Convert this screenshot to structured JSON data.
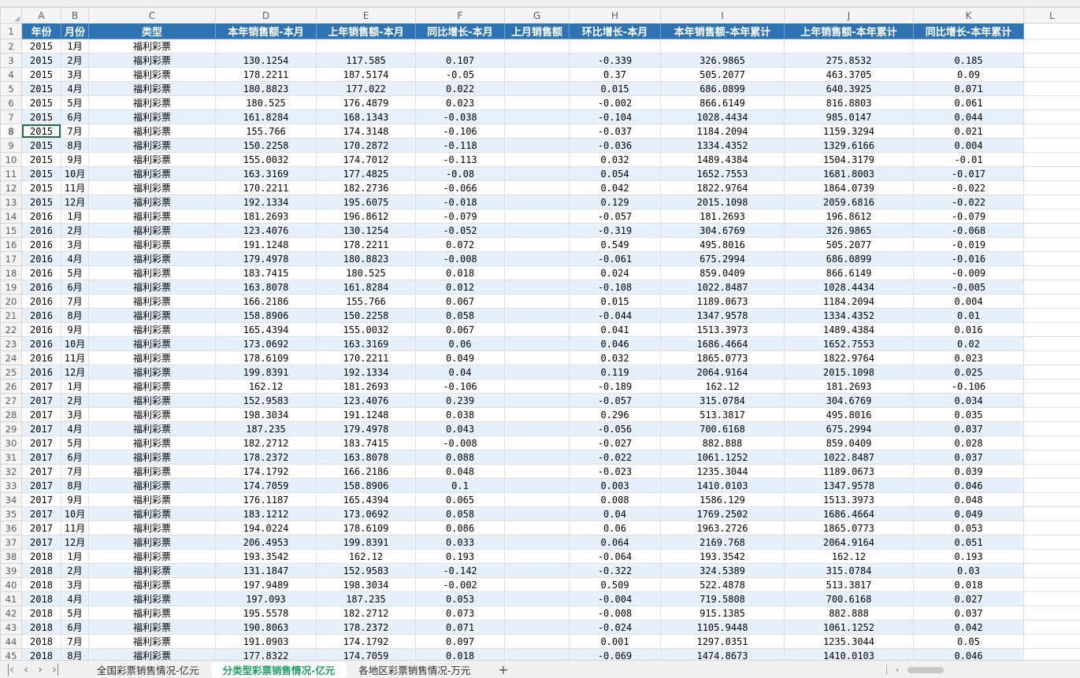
{
  "colors": {
    "header_bg": "#2E74B5",
    "band": "#E6F0FA",
    "selection_green": "#217346",
    "active_tab_text": "#1D9E60"
  },
  "icons": {
    "select_all": "◢",
    "nav_first": "‹",
    "nav_prev": "‹",
    "nav_next": "›",
    "nav_last": "›",
    "add_tab": "+",
    "scroll_left": "‹"
  },
  "selection": {
    "active_cell": "A8"
  },
  "grid": {
    "column_letters": [
      "A",
      "B",
      "C",
      "D",
      "E",
      "F",
      "G",
      "H",
      "I",
      "J",
      "K",
      "L"
    ],
    "header_row_number": "1",
    "header_cells": [
      "年份",
      "月份",
      "类型",
      "本年销售额-本月",
      "上年销售额-本月",
      "同比增长-本月",
      "上月销售额",
      "环比增长-本月",
      "本年销售额-本年累计",
      "上年销售额-本年累计",
      "同比增长-本年累计"
    ],
    "rows": [
      {
        "n": "2",
        "cells": [
          "2015",
          "1月",
          "福利彩票",
          "",
          "",
          "",
          "",
          "",
          "",
          "",
          ""
        ]
      },
      {
        "n": "3",
        "cells": [
          "2015",
          "2月",
          "福利彩票",
          "130.1254",
          "117.585",
          "0.107",
          "",
          "-0.339",
          "326.9865",
          "275.8532",
          "0.185"
        ]
      },
      {
        "n": "4",
        "cells": [
          "2015",
          "3月",
          "福利彩票",
          "178.2211",
          "187.5174",
          "-0.05",
          "",
          "0.37",
          "505.2077",
          "463.3705",
          "0.09"
        ]
      },
      {
        "n": "5",
        "cells": [
          "2015",
          "4月",
          "福利彩票",
          "180.8823",
          "177.022",
          "0.022",
          "",
          "0.015",
          "686.0899",
          "640.3925",
          "0.071"
        ]
      },
      {
        "n": "6",
        "cells": [
          "2015",
          "5月",
          "福利彩票",
          "180.525",
          "176.4879",
          "0.023",
          "",
          "-0.002",
          "866.6149",
          "816.8803",
          "0.061"
        ]
      },
      {
        "n": "7",
        "cells": [
          "2015",
          "6月",
          "福利彩票",
          "161.8284",
          "168.1343",
          "-0.038",
          "",
          "-0.104",
          "1028.4434",
          "985.0147",
          "0.044"
        ]
      },
      {
        "n": "8",
        "cells": [
          "2015",
          "7月",
          "福利彩票",
          "155.766",
          "174.3148",
          "-0.106",
          "",
          "-0.037",
          "1184.2094",
          "1159.3294",
          "0.021"
        ]
      },
      {
        "n": "9",
        "cells": [
          "2015",
          "8月",
          "福利彩票",
          "150.2258",
          "170.2872",
          "-0.118",
          "",
          "-0.036",
          "1334.4352",
          "1329.6166",
          "0.004"
        ]
      },
      {
        "n": "10",
        "cells": [
          "2015",
          "9月",
          "福利彩票",
          "155.0032",
          "174.7012",
          "-0.113",
          "",
          "0.032",
          "1489.4384",
          "1504.3179",
          "-0.01"
        ]
      },
      {
        "n": "11",
        "cells": [
          "2015",
          "10月",
          "福利彩票",
          "163.3169",
          "177.4825",
          "-0.08",
          "",
          "0.054",
          "1652.7553",
          "1681.8003",
          "-0.017"
        ]
      },
      {
        "n": "12",
        "cells": [
          "2015",
          "11月",
          "福利彩票",
          "170.2211",
          "182.2736",
          "-0.066",
          "",
          "0.042",
          "1822.9764",
          "1864.0739",
          "-0.022"
        ]
      },
      {
        "n": "13",
        "cells": [
          "2015",
          "12月",
          "福利彩票",
          "192.1334",
          "195.6075",
          "-0.018",
          "",
          "0.129",
          "2015.1098",
          "2059.6816",
          "-0.022"
        ]
      },
      {
        "n": "14",
        "cells": [
          "2016",
          "1月",
          "福利彩票",
          "181.2693",
          "196.8612",
          "-0.079",
          "",
          "-0.057",
          "181.2693",
          "196.8612",
          "-0.079"
        ]
      },
      {
        "n": "15",
        "cells": [
          "2016",
          "2月",
          "福利彩票",
          "123.4076",
          "130.1254",
          "-0.052",
          "",
          "-0.319",
          "304.6769",
          "326.9865",
          "-0.068"
        ]
      },
      {
        "n": "16",
        "cells": [
          "2016",
          "3月",
          "福利彩票",
          "191.1248",
          "178.2211",
          "0.072",
          "",
          "0.549",
          "495.8016",
          "505.2077",
          "-0.019"
        ]
      },
      {
        "n": "17",
        "cells": [
          "2016",
          "4月",
          "福利彩票",
          "179.4978",
          "180.8823",
          "-0.008",
          "",
          "-0.061",
          "675.2994",
          "686.0899",
          "-0.016"
        ]
      },
      {
        "n": "18",
        "cells": [
          "2016",
          "5月",
          "福利彩票",
          "183.7415",
          "180.525",
          "0.018",
          "",
          "0.024",
          "859.0409",
          "866.6149",
          "-0.009"
        ]
      },
      {
        "n": "19",
        "cells": [
          "2016",
          "6月",
          "福利彩票",
          "163.8078",
          "161.8284",
          "0.012",
          "",
          "-0.108",
          "1022.8487",
          "1028.4434",
          "-0.005"
        ]
      },
      {
        "n": "20",
        "cells": [
          "2016",
          "7月",
          "福利彩票",
          "166.2186",
          "155.766",
          "0.067",
          "",
          "0.015",
          "1189.0673",
          "1184.2094",
          "0.004"
        ]
      },
      {
        "n": "21",
        "cells": [
          "2016",
          "8月",
          "福利彩票",
          "158.8906",
          "150.2258",
          "0.058",
          "",
          "-0.044",
          "1347.9578",
          "1334.4352",
          "0.01"
        ]
      },
      {
        "n": "22",
        "cells": [
          "2016",
          "9月",
          "福利彩票",
          "165.4394",
          "155.0032",
          "0.067",
          "",
          "0.041",
          "1513.3973",
          "1489.4384",
          "0.016"
        ]
      },
      {
        "n": "23",
        "cells": [
          "2016",
          "10月",
          "福利彩票",
          "173.0692",
          "163.3169",
          "0.06",
          "",
          "0.046",
          "1686.4664",
          "1652.7553",
          "0.02"
        ]
      },
      {
        "n": "24",
        "cells": [
          "2016",
          "11月",
          "福利彩票",
          "178.6109",
          "170.2211",
          "0.049",
          "",
          "0.032",
          "1865.0773",
          "1822.9764",
          "0.023"
        ]
      },
      {
        "n": "25",
        "cells": [
          "2016",
          "12月",
          "福利彩票",
          "199.8391",
          "192.1334",
          "0.04",
          "",
          "0.119",
          "2064.9164",
          "2015.1098",
          "0.025"
        ]
      },
      {
        "n": "26",
        "cells": [
          "2017",
          "1月",
          "福利彩票",
          "162.12",
          "181.2693",
          "-0.106",
          "",
          "-0.189",
          "162.12",
          "181.2693",
          "-0.106"
        ]
      },
      {
        "n": "27",
        "cells": [
          "2017",
          "2月",
          "福利彩票",
          "152.9583",
          "123.4076",
          "0.239",
          "",
          "-0.057",
          "315.0784",
          "304.6769",
          "0.034"
        ]
      },
      {
        "n": "28",
        "cells": [
          "2017",
          "3月",
          "福利彩票",
          "198.3034",
          "191.1248",
          "0.038",
          "",
          "0.296",
          "513.3817",
          "495.8016",
          "0.035"
        ]
      },
      {
        "n": "29",
        "cells": [
          "2017",
          "4月",
          "福利彩票",
          "187.235",
          "179.4978",
          "0.043",
          "",
          "-0.056",
          "700.6168",
          "675.2994",
          "0.037"
        ]
      },
      {
        "n": "30",
        "cells": [
          "2017",
          "5月",
          "福利彩票",
          "182.2712",
          "183.7415",
          "-0.008",
          "",
          "-0.027",
          "882.888",
          "859.0409",
          "0.028"
        ]
      },
      {
        "n": "31",
        "cells": [
          "2017",
          "6月",
          "福利彩票",
          "178.2372",
          "163.8078",
          "0.088",
          "",
          "-0.022",
          "1061.1252",
          "1022.8487",
          "0.037"
        ]
      },
      {
        "n": "32",
        "cells": [
          "2017",
          "7月",
          "福利彩票",
          "174.1792",
          "166.2186",
          "0.048",
          "",
          "-0.023",
          "1235.3044",
          "1189.0673",
          "0.039"
        ]
      },
      {
        "n": "33",
        "cells": [
          "2017",
          "8月",
          "福利彩票",
          "174.7059",
          "158.8906",
          "0.1",
          "",
          "0.003",
          "1410.0103",
          "1347.9578",
          "0.046"
        ]
      },
      {
        "n": "34",
        "cells": [
          "2017",
          "9月",
          "福利彩票",
          "176.1187",
          "165.4394",
          "0.065",
          "",
          "0.008",
          "1586.129",
          "1513.3973",
          "0.048"
        ]
      },
      {
        "n": "35",
        "cells": [
          "2017",
          "10月",
          "福利彩票",
          "183.1212",
          "173.0692",
          "0.058",
          "",
          "0.04",
          "1769.2502",
          "1686.4664",
          "0.049"
        ]
      },
      {
        "n": "36",
        "cells": [
          "2017",
          "11月",
          "福利彩票",
          "194.0224",
          "178.6109",
          "0.086",
          "",
          "0.06",
          "1963.2726",
          "1865.0773",
          "0.053"
        ]
      },
      {
        "n": "37",
        "cells": [
          "2017",
          "12月",
          "福利彩票",
          "206.4953",
          "199.8391",
          "0.033",
          "",
          "0.064",
          "2169.768",
          "2064.9164",
          "0.051"
        ]
      },
      {
        "n": "38",
        "cells": [
          "2018",
          "1月",
          "福利彩票",
          "193.3542",
          "162.12",
          "0.193",
          "",
          "-0.064",
          "193.3542",
          "162.12",
          "0.193"
        ]
      },
      {
        "n": "39",
        "cells": [
          "2018",
          "2月",
          "福利彩票",
          "131.1847",
          "152.9583",
          "-0.142",
          "",
          "-0.322",
          "324.5389",
          "315.0784",
          "0.03"
        ]
      },
      {
        "n": "40",
        "cells": [
          "2018",
          "3月",
          "福利彩票",
          "197.9489",
          "198.3034",
          "-0.002",
          "",
          "0.509",
          "522.4878",
          "513.3817",
          "0.018"
        ]
      },
      {
        "n": "41",
        "cells": [
          "2018",
          "4月",
          "福利彩票",
          "197.093",
          "187.235",
          "0.053",
          "",
          "-0.004",
          "719.5808",
          "700.6168",
          "0.027"
        ]
      },
      {
        "n": "42",
        "cells": [
          "2018",
          "5月",
          "福利彩票",
          "195.5578",
          "182.2712",
          "0.073",
          "",
          "-0.008",
          "915.1385",
          "882.888",
          "0.037"
        ]
      },
      {
        "n": "43",
        "cells": [
          "2018",
          "6月",
          "福利彩票",
          "190.8063",
          "178.2372",
          "0.071",
          "",
          "-0.024",
          "1105.9448",
          "1061.1252",
          "0.042"
        ]
      },
      {
        "n": "44",
        "cells": [
          "2018",
          "7月",
          "福利彩票",
          "191.0903",
          "174.1792",
          "0.097",
          "",
          "0.001",
          "1297.0351",
          "1235.3044",
          "0.05"
        ]
      },
      {
        "n": "45",
        "cells": [
          "2018",
          "8月",
          "福利彩票",
          "177.8322",
          "174.7059",
          "0.018",
          "",
          "-0.069",
          "1474.8673",
          "1410.0103",
          "0.046"
        ]
      }
    ]
  },
  "sheet_bar": {
    "tabs": [
      {
        "label": "全国彩票销售情况-亿元",
        "active": false
      },
      {
        "label": "分类型彩票销售情况-亿元",
        "active": true
      },
      {
        "label": "各地区彩票销售情况-万元",
        "active": false
      }
    ]
  }
}
